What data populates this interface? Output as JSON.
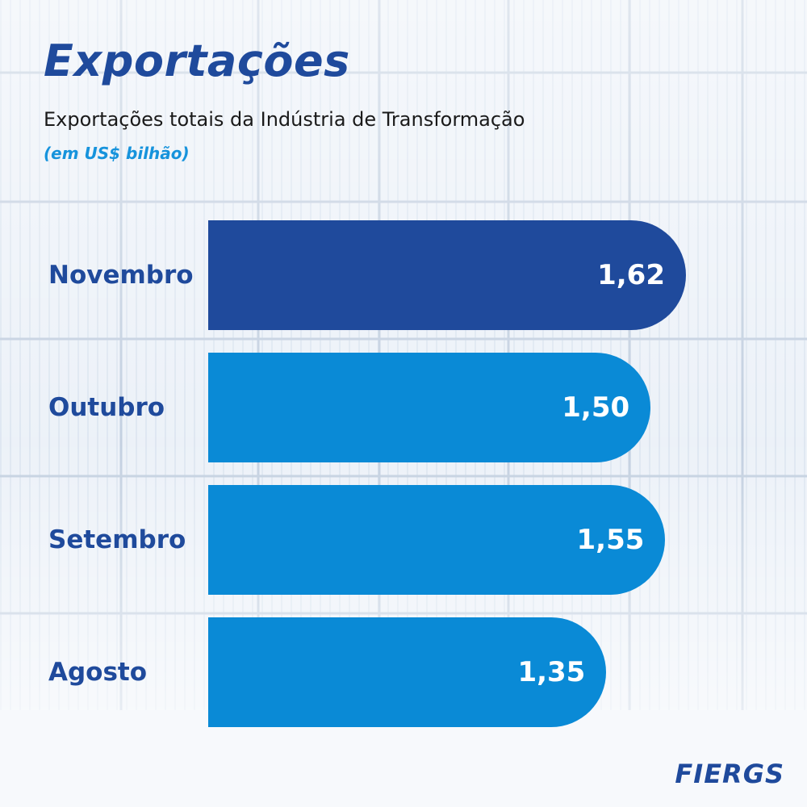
{
  "title": "Exportações",
  "subtitle": "Exportações totais da Indústria de Transformação",
  "unit_note": "(em US$ bilhão)",
  "logo_text": "FIERGS",
  "colors": {
    "highlight": "#1f4a9c",
    "bar": "#0a8ad6",
    "label": "#1f4a9c",
    "unit": "#1693dc"
  },
  "chart_data": {
    "type": "bar",
    "orientation": "horizontal",
    "categories": [
      "Novembro",
      "Outubro",
      "Setembro",
      "Agosto"
    ],
    "values": [
      1.62,
      1.5,
      1.55,
      1.35
    ],
    "value_labels": [
      "1,62",
      "1,50",
      "1,55",
      "1,35"
    ],
    "highlight_index": 0,
    "xlim": [
      0,
      1.62
    ],
    "grid": false
  }
}
